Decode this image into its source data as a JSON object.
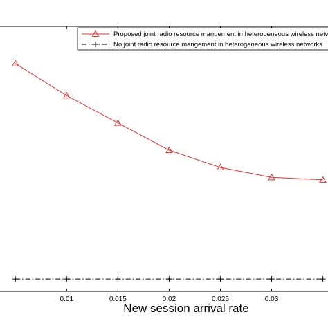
{
  "chart_data": {
    "type": "line",
    "xlabel": "New session arrival rate",
    "ylabel": "",
    "x_ticks": [
      "0.01",
      "0.015",
      "0.02",
      "0.025",
      "0.03"
    ],
    "xlim": [
      0.0035,
      0.0355
    ],
    "ylim": [
      -0.05,
      1.02
    ],
    "grid": false,
    "legend_position": "top-right",
    "series": [
      {
        "name": "Proposed joint radio resource mangement in heterogeneous wireless networks",
        "color": "#e8302b",
        "marker": "triangle",
        "x": [
          0.005,
          0.01,
          0.015,
          0.02,
          0.025,
          0.03,
          0.035
        ],
        "y": [
          0.87,
          0.74,
          0.63,
          0.52,
          0.45,
          0.41,
          0.4
        ]
      },
      {
        "name": "No joint radio resource mangement in heterogeneous wireless networks",
        "color": "#000000",
        "marker": "plus",
        "line_style": "dash-dot",
        "x": [
          0.005,
          0.01,
          0.015,
          0.02,
          0.025,
          0.03,
          0.035
        ],
        "y": [
          0.0,
          0.0,
          0.0,
          0.0,
          0.0,
          0.0,
          0.0
        ]
      }
    ]
  }
}
